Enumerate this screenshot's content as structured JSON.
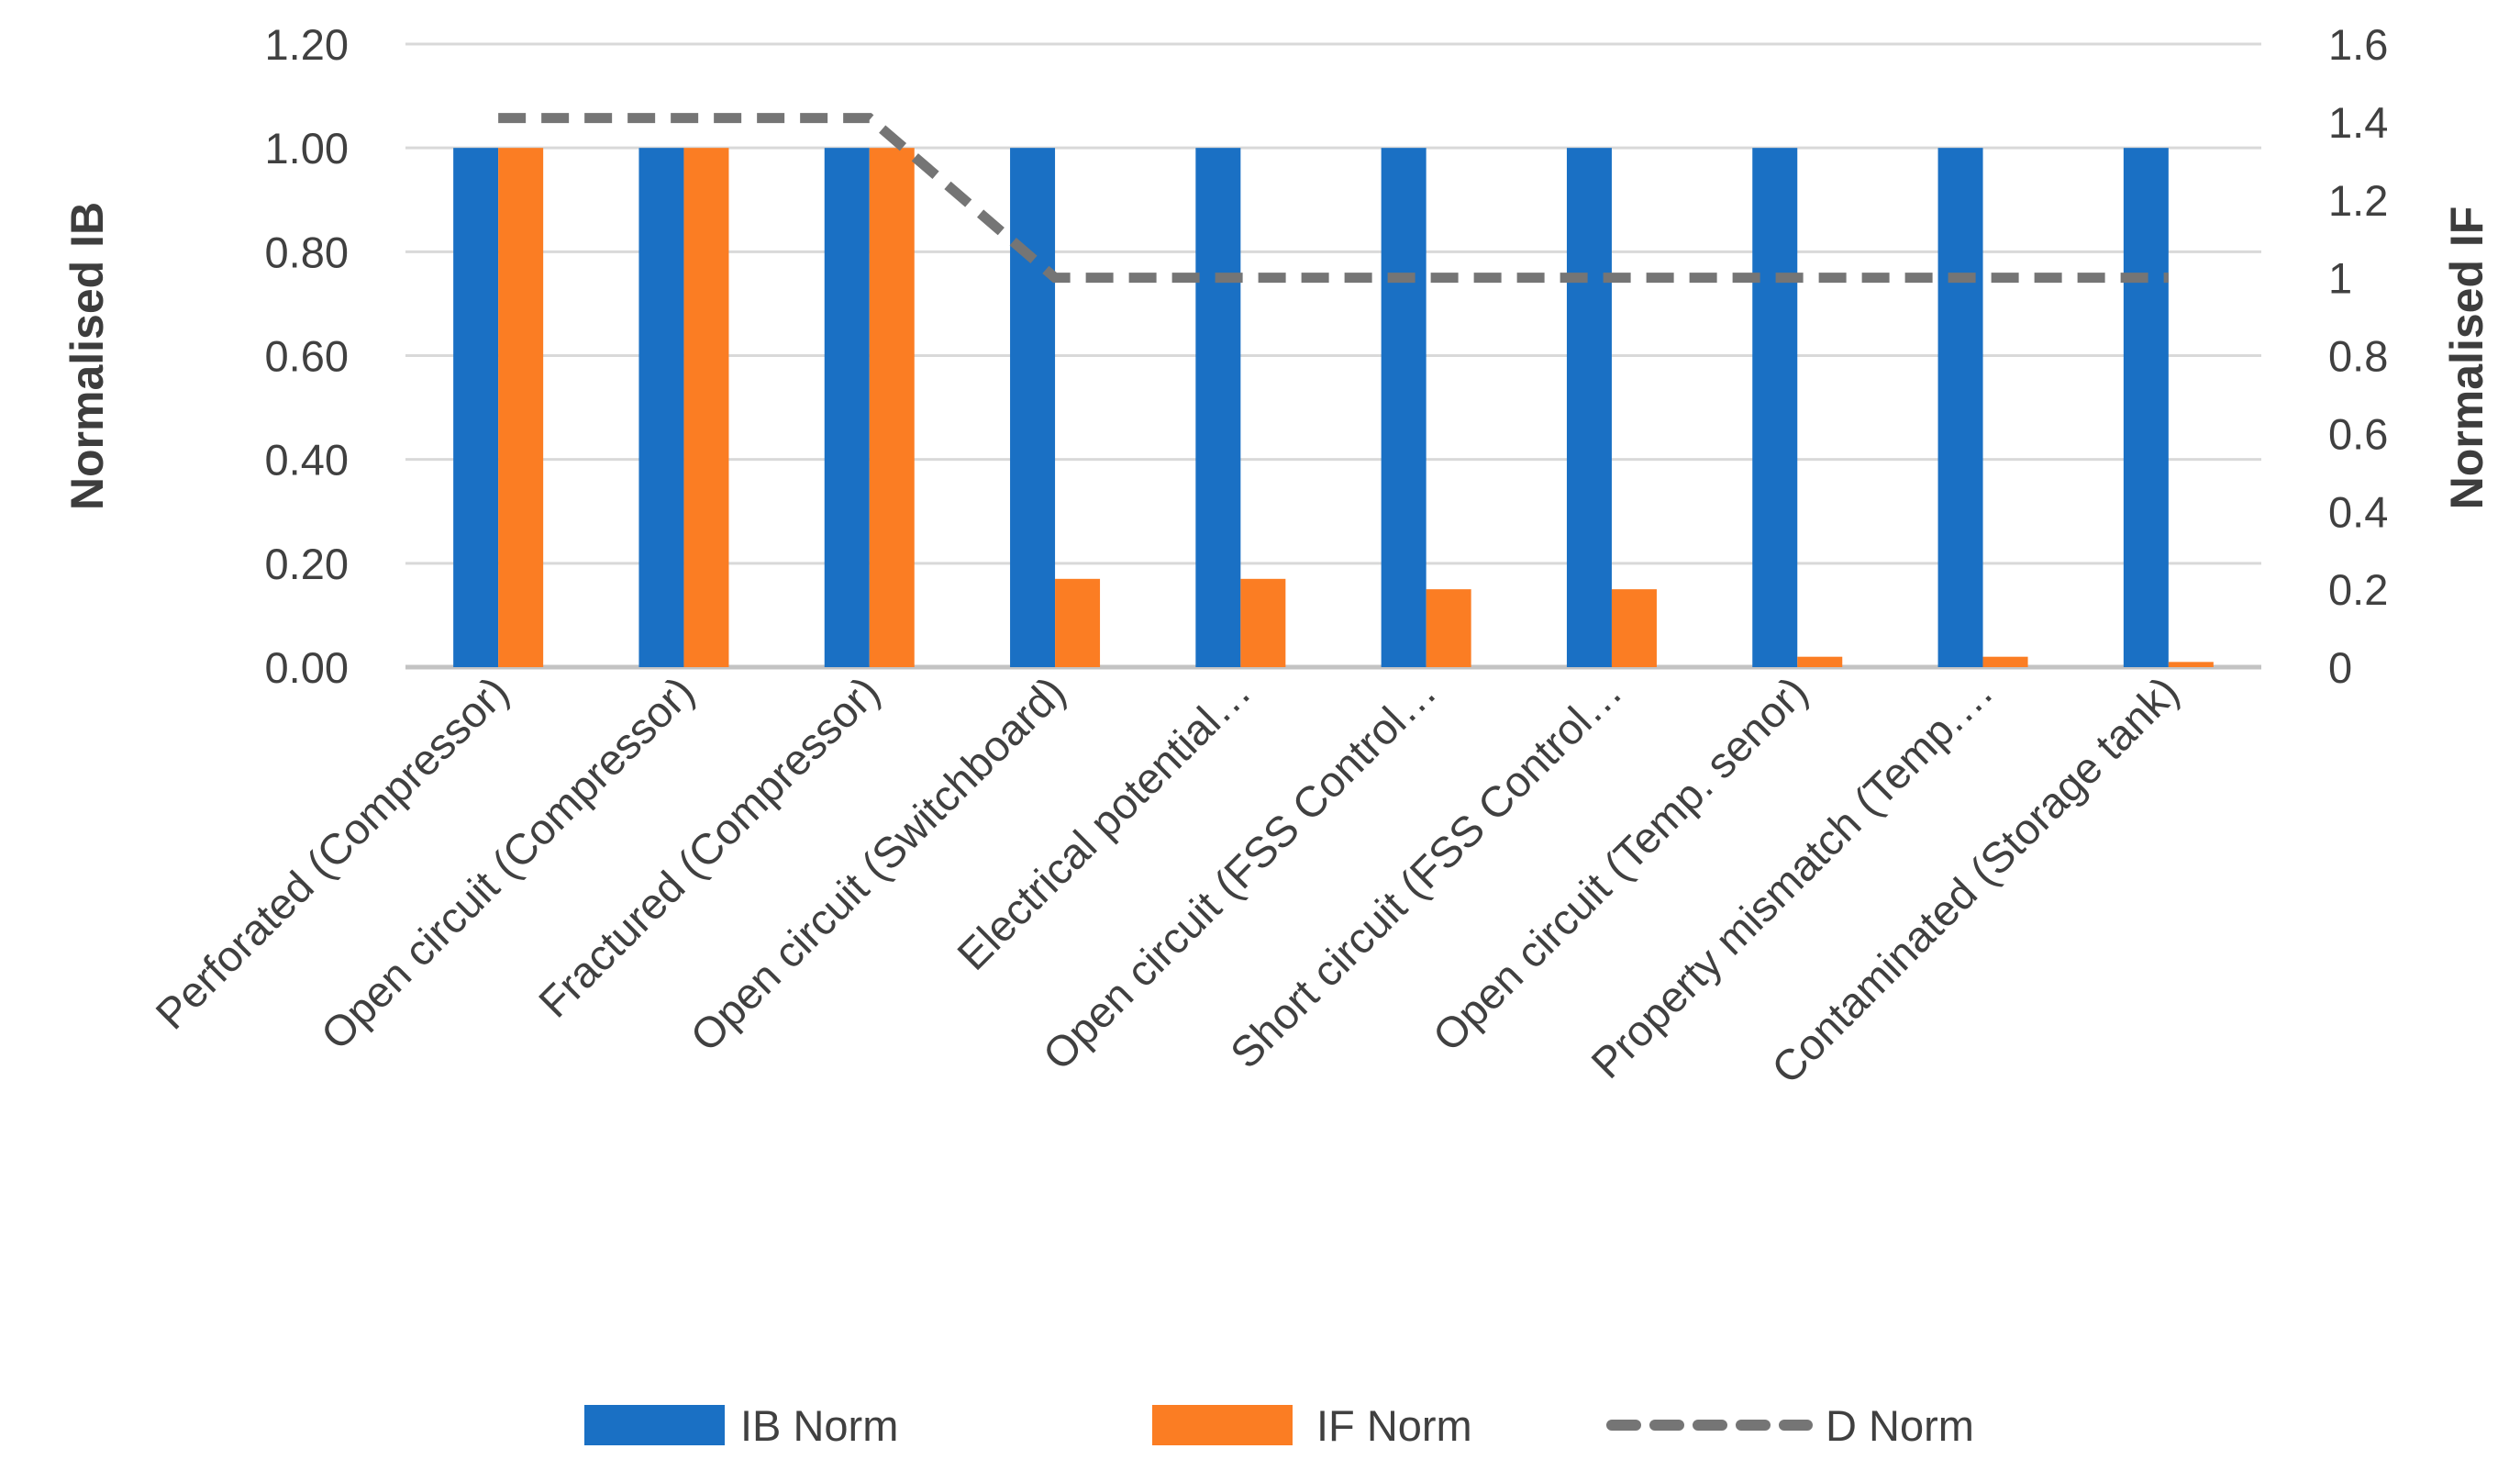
{
  "chart_data": {
    "type": "bar",
    "subtype": "combo-bar-line-dual-axis",
    "title": "",
    "categories": [
      "Perforated (Compressor)",
      "Open circuit (Compressor)",
      "Fractured (Compressor)",
      "Open circuit (Switchboard)",
      "Electrical potential…",
      "Open circuit (FSS Control…",
      "Short circuit (FSS Control…",
      "Open circuit (Temp. senor)",
      "Property mismatch (Temp.…",
      "Contaminated (Storage tank)"
    ],
    "series": [
      {
        "name": "IB Norm",
        "type": "bar",
        "axis": "left",
        "color": "#1A70C4",
        "values": [
          1.0,
          1.0,
          1.0,
          1.0,
          1.0,
          1.0,
          1.0,
          1.0,
          1.0,
          1.0
        ]
      },
      {
        "name": "IF Norm",
        "type": "bar",
        "axis": "left",
        "color": "#FB7D23",
        "values": [
          1.0,
          1.0,
          1.0,
          0.17,
          0.17,
          0.15,
          0.15,
          0.02,
          0.02,
          0.01
        ]
      },
      {
        "name": "D Norm",
        "type": "line",
        "line_style": "dashed",
        "axis": "right",
        "color": "#757575",
        "values": [
          1.41,
          1.41,
          1.41,
          1.0,
          1.0,
          1.0,
          1.0,
          1.0,
          1.0,
          1.0
        ]
      }
    ],
    "left_axis": {
      "title": "Normalised IB",
      "min": 0,
      "max": 1.2,
      "tick_values": [
        0,
        0.2,
        0.4,
        0.6,
        0.8,
        1.0,
        1.2
      ],
      "tick_labels": [
        "0.00",
        "0.20",
        "0.40",
        "0.60",
        "0.80",
        "1.00",
        "1.20"
      ]
    },
    "right_axis": {
      "title": "Normalised IF",
      "min": 0,
      "max": 1.6,
      "tick_values": [
        0,
        0.2,
        0.4,
        0.6,
        0.8,
        1.0,
        1.2,
        1.4,
        1.6
      ],
      "tick_labels": [
        "0",
        "0.2",
        "0.4",
        "0.6",
        "0.8",
        "1",
        "1.2",
        "1.4",
        "1.6"
      ]
    },
    "grid": true,
    "legend_position": "bottom",
    "legend": [
      {
        "label": "IB Norm",
        "swatch": "bar",
        "color": "#1A70C4"
      },
      {
        "label": "IF Norm",
        "swatch": "bar",
        "color": "#FB7D23"
      },
      {
        "label": "D Norm",
        "swatch": "dashed-line",
        "color": "#757575"
      }
    ],
    "colors": {
      "gridline": "#D9D9D9",
      "axis_line": "#C3C3C3",
      "text": "#404040"
    }
  }
}
